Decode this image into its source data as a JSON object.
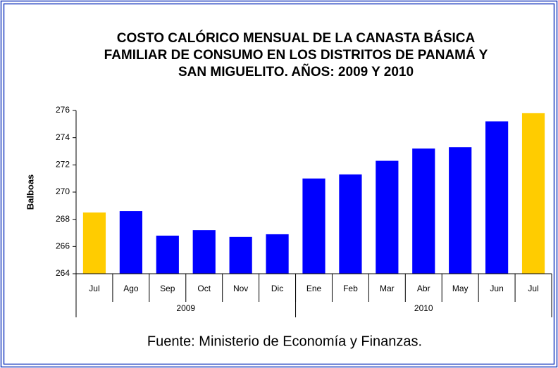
{
  "chart_data": {
    "type": "bar",
    "title": [
      "COSTO CALÓRICO MENSUAL DE LA CANASTA BÁSICA",
      "FAMILIAR DE CONSUMO EN LOS DISTRITOS DE PANAMÁ Y",
      "SAN MIGUELITO. AÑOS: 2009 Y 2010"
    ],
    "ylabel": "Balboas",
    "groups": [
      {
        "label": "2009",
        "categories": [
          "Jul",
          "Ago",
          "Sep",
          "Oct",
          "Nov",
          "Dic"
        ]
      },
      {
        "label": "2010",
        "categories": [
          "Ene",
          "Feb",
          "Mar",
          "Abr",
          "May",
          "Jun",
          "Jul"
        ]
      }
    ],
    "values": [
      268.5,
      268.6,
      266.8,
      267.2,
      266.7,
      266.9,
      271.0,
      271.3,
      272.3,
      273.2,
      273.3,
      275.2,
      275.8
    ],
    "colors": [
      "#ffcc00",
      "#0000ff",
      "#0000ff",
      "#0000ff",
      "#0000ff",
      "#0000ff",
      "#0000ff",
      "#0000ff",
      "#0000ff",
      "#0000ff",
      "#0000ff",
      "#0000ff",
      "#ffcc00"
    ],
    "ylim": [
      264,
      276
    ],
    "yticks": [
      264,
      266,
      268,
      270,
      272,
      274,
      276
    ],
    "grid": false,
    "source": "Fuente: Ministerio de Economía y Finanzas."
  }
}
